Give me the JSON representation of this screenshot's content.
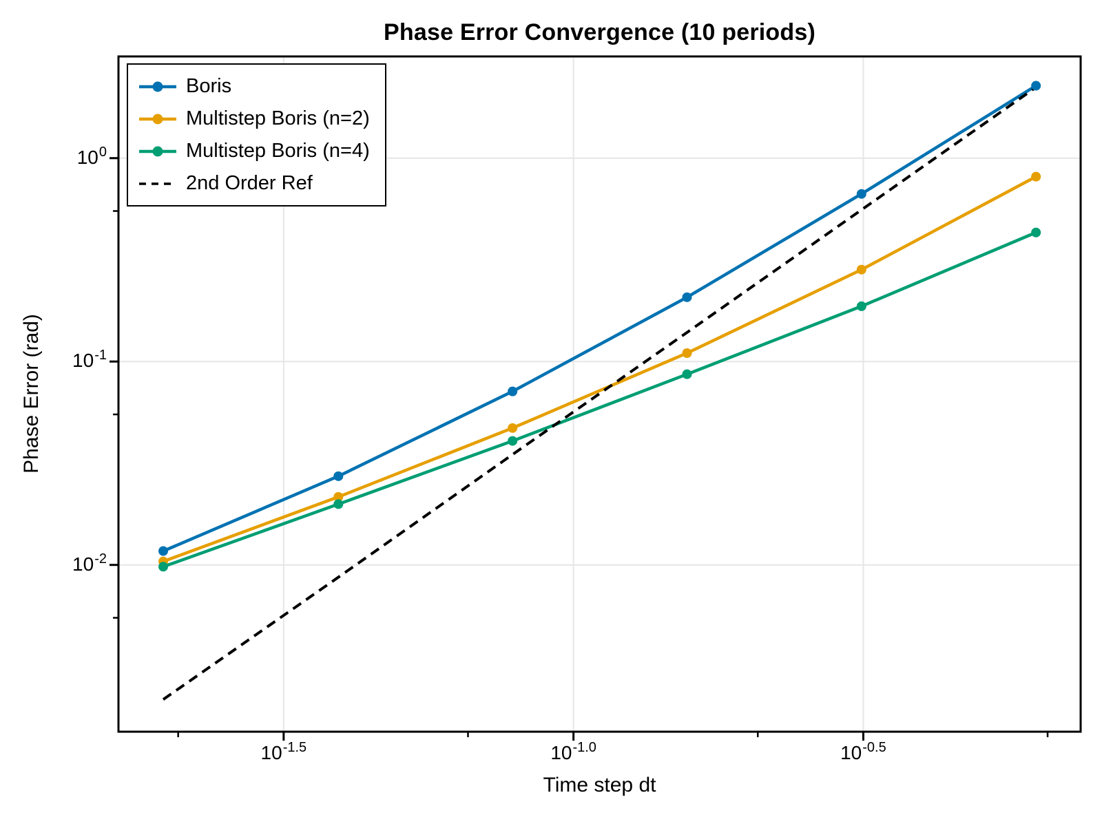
{
  "figure": {
    "background": "#ffffff"
  },
  "chart_data": {
    "type": "line",
    "title": "Phase Error Convergence (10 periods)",
    "xlabel": "Time step dt",
    "ylabel": "Phase Error (rad)",
    "x_scale": "log10",
    "y_scale": "log10",
    "xlim_log10": [
      -1.785,
      -0.125
    ],
    "ylim_log10": [
      -2.82,
      0.5
    ],
    "grid": true,
    "legend_position": "top-left",
    "grid_color": "#e6e6e6",
    "axis_color": "#000000",
    "x": [
      0.0196,
      0.0393,
      0.0785,
      0.157,
      0.314,
      0.628
    ],
    "series": [
      {
        "name": "Boris",
        "color": "#0072B2",
        "style": "solid",
        "marker": "circle",
        "values": [
          0.0117,
          0.0273,
          0.0713,
          0.207,
          0.667,
          2.27
        ]
      },
      {
        "name": "Multistep Boris (n=2)",
        "color": "#E69F00",
        "style": "solid",
        "marker": "circle",
        "values": [
          0.0104,
          0.0216,
          0.0471,
          0.11,
          0.283,
          0.811
        ]
      },
      {
        "name": "Multistep Boris (n=4)",
        "color": "#009E73",
        "style": "solid",
        "marker": "circle",
        "values": [
          0.0098,
          0.0199,
          0.0407,
          0.0866,
          0.187,
          0.431
        ]
      },
      {
        "name": "2nd Order Ref",
        "color": "#000000",
        "style": "dashed",
        "marker": "none",
        "values": [
          0.00218,
          0.0087,
          0.0349,
          0.139,
          0.557,
          2.23
        ]
      }
    ],
    "x_ticks": [
      {
        "log10": -1.5,
        "base": "10",
        "exp": "-1.5"
      },
      {
        "log10": -1.0,
        "base": "10",
        "exp": "-1.0"
      },
      {
        "log10": -0.5,
        "base": "10",
        "exp": "-0.5"
      }
    ],
    "y_ticks": [
      {
        "log10": 0,
        "base": "10",
        "exp": "0"
      },
      {
        "log10": -1,
        "base": "10",
        "exp": "-1"
      },
      {
        "log10": -2,
        "base": "10",
        "exp": "-2"
      }
    ],
    "x_minor_ticks_log10": [
      -1.682,
      -1.182,
      -0.682,
      -0.182
    ],
    "y_minor_ticks_log10": [
      -0.26,
      -1.26,
      -2.26
    ]
  }
}
